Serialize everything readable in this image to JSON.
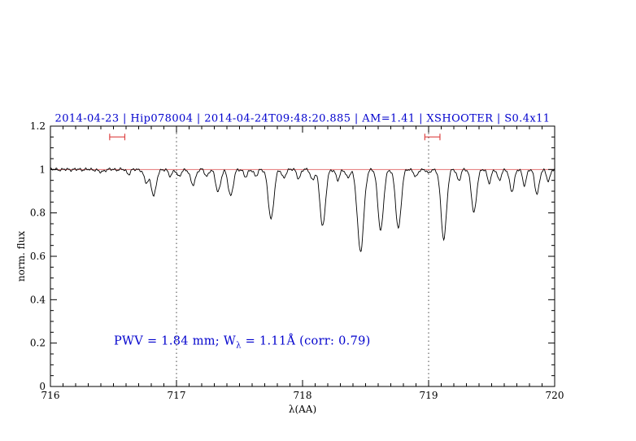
{
  "colors": {
    "title": "#0000cd",
    "annotation": "#0000cd",
    "spectrum": "#000000",
    "continuum": "#e57373",
    "marker": "#dd4444",
    "axis": "#000000",
    "guide": "#444444"
  },
  "annotation": {
    "part1": "PWV = 1.84 mm; W",
    "sub": "λ",
    "part2": " = 1.11Å (corr: 0.79)"
  },
  "chart_data": {
    "type": "line",
    "title": "2014-04-23 | Hip078004 | 2014-04-24T09:48:20.885 | AM=1.41 | XSHOOTER | S0.4x11",
    "xlabel": "λ(AA)",
    "ylabel": "norm. flux",
    "xlim": [
      716,
      720
    ],
    "ylim": [
      0,
      1.2
    ],
    "x_ticks": [
      716,
      717,
      718,
      719,
      720
    ],
    "x_tick_labels": [
      "716",
      "717",
      "718",
      "719",
      "720"
    ],
    "x_minor_step": 0.1,
    "y_ticks": [
      0,
      0.2,
      0.4,
      0.6,
      0.8,
      1.0,
      1.2
    ],
    "y_tick_labels": [
      "0",
      "0.2",
      "0.4",
      "0.6",
      "0.8",
      "1",
      "1.2"
    ],
    "y_minor_step": 0.05,
    "grid": false,
    "legend": "none",
    "dotted_guides_x": [
      717,
      719
    ],
    "continuum_level": 1.0,
    "range_markers": [
      {
        "x": 716.53,
        "y": 1.15,
        "half_width": 0.06
      },
      {
        "x": 719.03,
        "y": 1.15,
        "half_width": 0.06
      }
    ],
    "spectrum": {
      "sample_step": 0.005,
      "noise": [
        {
          "amp": 0.004,
          "freq": 21.7,
          "phase": 0.0
        },
        {
          "amp": 0.003,
          "freq": 47.3,
          "phase": 1.3
        },
        {
          "amp": 0.002,
          "freq": 11.1,
          "phase": 2.1
        }
      ],
      "absorption_lines": [
        [
          716.4,
          0.012,
          0.02
        ],
        [
          716.62,
          0.02,
          0.015
        ],
        [
          716.76,
          0.06,
          0.018
        ],
        [
          716.82,
          0.12,
          0.02
        ],
        [
          716.95,
          0.03,
          0.015
        ],
        [
          717.02,
          0.035,
          0.015
        ],
        [
          717.13,
          0.07,
          0.02
        ],
        [
          717.24,
          0.03,
          0.015
        ],
        [
          717.33,
          0.1,
          0.02
        ],
        [
          717.43,
          0.12,
          0.02
        ],
        [
          717.55,
          0.035,
          0.015
        ],
        [
          717.63,
          0.03,
          0.015
        ],
        [
          717.75,
          0.23,
          0.022
        ],
        [
          717.85,
          0.04,
          0.015
        ],
        [
          717.97,
          0.04,
          0.015
        ],
        [
          718.08,
          0.05,
          0.015
        ],
        [
          718.16,
          0.26,
          0.022
        ],
        [
          718.28,
          0.05,
          0.015
        ],
        [
          718.36,
          0.04,
          0.015
        ],
        [
          718.46,
          0.38,
          0.025
        ],
        [
          718.62,
          0.28,
          0.022
        ],
        [
          718.76,
          0.27,
          0.022
        ],
        [
          718.9,
          0.035,
          0.015
        ],
        [
          719.0,
          0.02,
          0.012
        ],
        [
          719.12,
          0.32,
          0.022
        ],
        [
          719.24,
          0.05,
          0.015
        ],
        [
          719.36,
          0.2,
          0.02
        ],
        [
          719.48,
          0.06,
          0.015
        ],
        [
          719.56,
          0.05,
          0.015
        ],
        [
          719.66,
          0.1,
          0.018
        ],
        [
          719.76,
          0.07,
          0.015
        ],
        [
          719.86,
          0.11,
          0.018
        ],
        [
          719.95,
          0.05,
          0.015
        ]
      ]
    }
  }
}
